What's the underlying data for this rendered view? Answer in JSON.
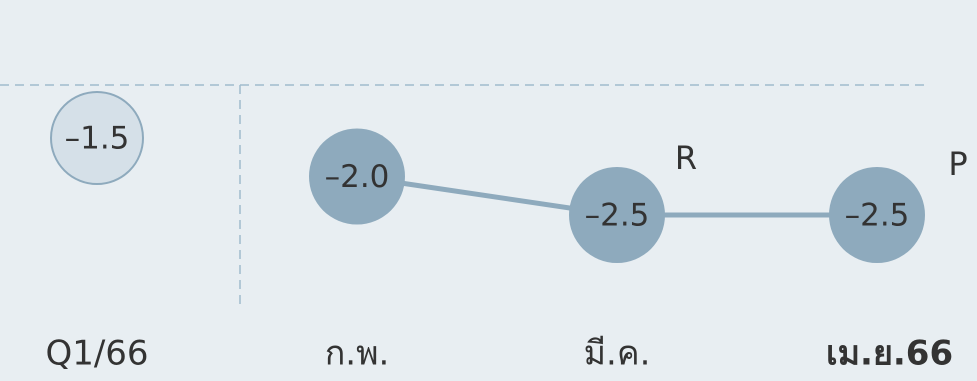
{
  "chart_data": {
    "type": "line",
    "categories": [
      "Q1/66",
      "ก.พ.",
      "มี.ค.",
      "เม.ย.66"
    ],
    "series": [
      {
        "values": [
          -1.5,
          -2.0,
          -2.5,
          -2.5
        ],
        "value_labels": [
          "–1.5",
          "–2.0",
          "–2.5",
          "–2.5"
        ],
        "color": "#8eaabd",
        "point_colors": [
          "#d5e0e8",
          "#8eaabd",
          "#8eaabd",
          "#8eaabd"
        ]
      }
    ],
    "annotations": [
      "R",
      "P"
    ]
  }
}
